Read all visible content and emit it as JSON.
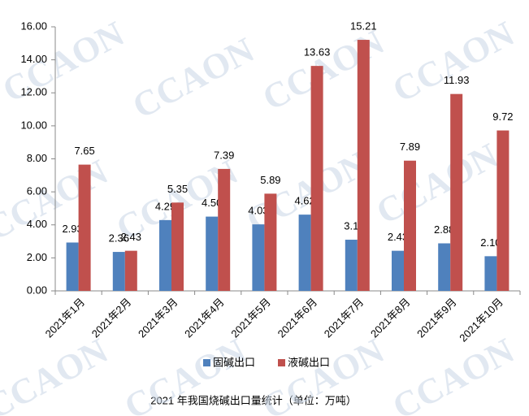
{
  "chart_data": {
    "type": "bar",
    "title": "2021 年我国烧碱出口量统计（单位：万吨）",
    "watermark": "CCAON",
    "categories": [
      "2021年1月",
      "2021年2月",
      "2021年3月",
      "2021年4月",
      "2021年5月",
      "2021年6月",
      "2021年7月",
      "2021年8月",
      "2021年9月",
      "2021年10月"
    ],
    "series": [
      {
        "name": "固碱出口",
        "color": "#4f81bd",
        "values": [
          2.93,
          2.36,
          4.29,
          4.5,
          4.03,
          4.62,
          3.1,
          2.43,
          2.88,
          2.1
        ],
        "value_labels": [
          "2.93",
          "2.36",
          "4.29",
          "4.50",
          "4.03",
          "4.62",
          "3.1",
          "2.43",
          "2.88",
          "2.10"
        ]
      },
      {
        "name": "液碱出口",
        "color": "#c0504d",
        "values": [
          7.65,
          2.43,
          5.35,
          7.39,
          5.89,
          13.63,
          15.21,
          7.89,
          11.93,
          9.72
        ],
        "value_labels": [
          "7.65",
          "2.43",
          "5.35",
          "7.39",
          "5.89",
          "13.63",
          "15.21",
          "7.89",
          "11.93",
          "9.72"
        ]
      }
    ],
    "ylim": [
      0,
      16
    ],
    "yticks": [
      {
        "value": 0,
        "label": "0.00"
      },
      {
        "value": 2,
        "label": "2.00"
      },
      {
        "value": 4,
        "label": "4.00"
      },
      {
        "value": 6,
        "label": "6.00"
      },
      {
        "value": 8,
        "label": "8.00"
      },
      {
        "value": 10,
        "label": "10.00"
      },
      {
        "value": 12,
        "label": "12.00"
      },
      {
        "value": 14,
        "label": "14.00"
      },
      {
        "value": 16,
        "label": "16.00"
      }
    ],
    "grid": false
  }
}
